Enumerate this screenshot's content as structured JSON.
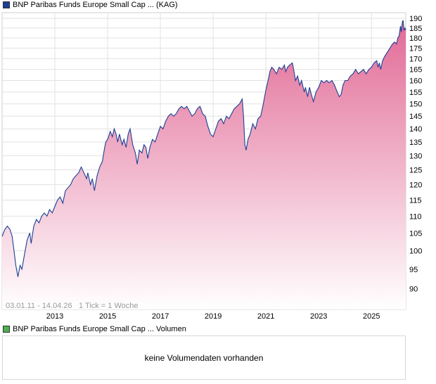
{
  "legend": {
    "price_label": "BNP Paribas Funds Europe Small Cap ... (KAG)",
    "price_color": "#1c3f94",
    "volume_label": "BNP Paribas Funds Europe Small Cap ... Volumen",
    "volume_color": "#4caf50"
  },
  "info": {
    "date_range": "03.01.11 - 14.04.26",
    "tick_text": "1 Tick = 1 Woche"
  },
  "volume": {
    "message": "keine Volumendaten vorhanden"
  },
  "colors": {
    "line": "#1c3f94",
    "fill_top": "#e26a96",
    "fill_bottom": "#ffffff",
    "grid": "#e2e2e2"
  },
  "chart_data": {
    "type": "area",
    "log_scale": true,
    "xlim": [
      2011.0,
      2026.3
    ],
    "ylim": [
      85,
      193
    ],
    "x_ticks": [
      2013,
      2015,
      2017,
      2019,
      2021,
      2023,
      2025
    ],
    "x_tick_labels": [
      "2013",
      "2015",
      "2017",
      "2019",
      "2021",
      "2023",
      "2025"
    ],
    "y_ticks": [
      90,
      95,
      100,
      105,
      110,
      115,
      120,
      125,
      130,
      135,
      140,
      145,
      150,
      155,
      160,
      165,
      170,
      175,
      180,
      185,
      190
    ],
    "y_tick_labels": [
      "90",
      "95",
      "100",
      "105",
      "110",
      "115",
      "120",
      "125",
      "130",
      "135",
      "140",
      "145",
      "150",
      "155",
      "160",
      "165",
      "170",
      "175",
      "180",
      "185",
      "190"
    ],
    "grid": true,
    "series": [
      {
        "points": [
          [
            2011.0,
            104
          ],
          [
            2011.1,
            106
          ],
          [
            2011.2,
            107
          ],
          [
            2011.3,
            106
          ],
          [
            2011.38,
            104
          ],
          [
            2011.45,
            100
          ],
          [
            2011.52,
            96
          ],
          [
            2011.6,
            93
          ],
          [
            2011.68,
            96
          ],
          [
            2011.75,
            95
          ],
          [
            2011.85,
            99
          ],
          [
            2011.95,
            103
          ],
          [
            2012.05,
            105
          ],
          [
            2012.1,
            102
          ],
          [
            2012.2,
            107
          ],
          [
            2012.3,
            109
          ],
          [
            2012.4,
            108
          ],
          [
            2012.5,
            110
          ],
          [
            2012.6,
            111
          ],
          [
            2012.7,
            110
          ],
          [
            2012.8,
            112
          ],
          [
            2012.9,
            111
          ],
          [
            2013.0,
            113
          ],
          [
            2013.1,
            115
          ],
          [
            2013.2,
            116
          ],
          [
            2013.3,
            114
          ],
          [
            2013.4,
            118
          ],
          [
            2013.5,
            119
          ],
          [
            2013.6,
            120
          ],
          [
            2013.7,
            122
          ],
          [
            2013.8,
            123
          ],
          [
            2013.9,
            124
          ],
          [
            2014.0,
            126
          ],
          [
            2014.1,
            124
          ],
          [
            2014.2,
            122
          ],
          [
            2014.25,
            124
          ],
          [
            2014.35,
            120
          ],
          [
            2014.42,
            122
          ],
          [
            2014.5,
            118
          ],
          [
            2014.6,
            123
          ],
          [
            2014.7,
            126
          ],
          [
            2014.8,
            128
          ],
          [
            2014.87,
            132
          ],
          [
            2014.93,
            135
          ],
          [
            2015.0,
            136
          ],
          [
            2015.1,
            139
          ],
          [
            2015.18,
            137
          ],
          [
            2015.25,
            140
          ],
          [
            2015.32,
            138
          ],
          [
            2015.38,
            135
          ],
          [
            2015.45,
            138
          ],
          [
            2015.55,
            134
          ],
          [
            2015.62,
            136
          ],
          [
            2015.7,
            133
          ],
          [
            2015.78,
            138
          ],
          [
            2015.85,
            140
          ],
          [
            2015.95,
            134
          ],
          [
            2016.05,
            131
          ],
          [
            2016.12,
            127
          ],
          [
            2016.2,
            132
          ],
          [
            2016.3,
            131
          ],
          [
            2016.38,
            134
          ],
          [
            2016.45,
            133
          ],
          [
            2016.52,
            129
          ],
          [
            2016.6,
            133
          ],
          [
            2016.7,
            136
          ],
          [
            2016.8,
            135
          ],
          [
            2016.9,
            138
          ],
          [
            2017.0,
            141
          ],
          [
            2017.1,
            140
          ],
          [
            2017.2,
            143
          ],
          [
            2017.3,
            145
          ],
          [
            2017.4,
            146
          ],
          [
            2017.5,
            145
          ],
          [
            2017.6,
            146
          ],
          [
            2017.7,
            148
          ],
          [
            2017.8,
            149
          ],
          [
            2017.9,
            148
          ],
          [
            2018.0,
            149
          ],
          [
            2018.1,
            147
          ],
          [
            2018.2,
            145
          ],
          [
            2018.3,
            146
          ],
          [
            2018.4,
            148
          ],
          [
            2018.5,
            149
          ],
          [
            2018.6,
            146
          ],
          [
            2018.7,
            145
          ],
          [
            2018.8,
            141
          ],
          [
            2018.9,
            138
          ],
          [
            2019.0,
            137
          ],
          [
            2019.1,
            140
          ],
          [
            2019.2,
            143
          ],
          [
            2019.3,
            144
          ],
          [
            2019.4,
            142
          ],
          [
            2019.5,
            145
          ],
          [
            2019.6,
            144
          ],
          [
            2019.7,
            146
          ],
          [
            2019.8,
            148
          ],
          [
            2019.9,
            149
          ],
          [
            2020.0,
            150
          ],
          [
            2020.1,
            152
          ],
          [
            2020.15,
            145
          ],
          [
            2020.2,
            134
          ],
          [
            2020.25,
            132
          ],
          [
            2020.32,
            136
          ],
          [
            2020.4,
            138
          ],
          [
            2020.5,
            142
          ],
          [
            2020.6,
            140
          ],
          [
            2020.7,
            144
          ],
          [
            2020.8,
            145
          ],
          [
            2020.9,
            150
          ],
          [
            2021.0,
            156
          ],
          [
            2021.08,
            160
          ],
          [
            2021.15,
            164
          ],
          [
            2021.22,
            166
          ],
          [
            2021.3,
            165
          ],
          [
            2021.4,
            163
          ],
          [
            2021.5,
            166
          ],
          [
            2021.6,
            165
          ],
          [
            2021.7,
            167
          ],
          [
            2021.75,
            164
          ],
          [
            2021.82,
            166
          ],
          [
            2021.9,
            167
          ],
          [
            2022.0,
            168
          ],
          [
            2022.05,
            165
          ],
          [
            2022.12,
            160
          ],
          [
            2022.2,
            162
          ],
          [
            2022.28,
            158
          ],
          [
            2022.35,
            160
          ],
          [
            2022.45,
            155
          ],
          [
            2022.5,
            157
          ],
          [
            2022.58,
            153
          ],
          [
            2022.65,
            157
          ],
          [
            2022.72,
            154
          ],
          [
            2022.8,
            151
          ],
          [
            2022.9,
            155
          ],
          [
            2023.0,
            157
          ],
          [
            2023.1,
            160
          ],
          [
            2023.2,
            159
          ],
          [
            2023.3,
            160
          ],
          [
            2023.4,
            159
          ],
          [
            2023.5,
            160
          ],
          [
            2023.6,
            158
          ],
          [
            2023.7,
            155
          ],
          [
            2023.78,
            153
          ],
          [
            2023.85,
            154
          ],
          [
            2023.92,
            158
          ],
          [
            2024.0,
            160
          ],
          [
            2024.1,
            160
          ],
          [
            2024.2,
            162
          ],
          [
            2024.3,
            163
          ],
          [
            2024.4,
            165
          ],
          [
            2024.5,
            163
          ],
          [
            2024.6,
            164
          ],
          [
            2024.7,
            165
          ],
          [
            2024.8,
            163
          ],
          [
            2024.9,
            165
          ],
          [
            2025.0,
            166
          ],
          [
            2025.1,
            168
          ],
          [
            2025.2,
            169
          ],
          [
            2025.25,
            166
          ],
          [
            2025.3,
            168
          ],
          [
            2025.35,
            165
          ],
          [
            2025.42,
            169
          ],
          [
            2025.5,
            171
          ],
          [
            2025.6,
            173
          ],
          [
            2025.7,
            175
          ],
          [
            2025.8,
            177
          ],
          [
            2025.88,
            178
          ],
          [
            2025.95,
            177
          ],
          [
            2026.0,
            180
          ],
          [
            2026.05,
            181
          ],
          [
            2026.1,
            186
          ],
          [
            2026.13,
            183
          ],
          [
            2026.17,
            188
          ],
          [
            2026.2,
            189
          ],
          [
            2026.23,
            184
          ],
          [
            2026.27,
            185
          ],
          [
            2026.3,
            184
          ]
        ]
      }
    ]
  }
}
